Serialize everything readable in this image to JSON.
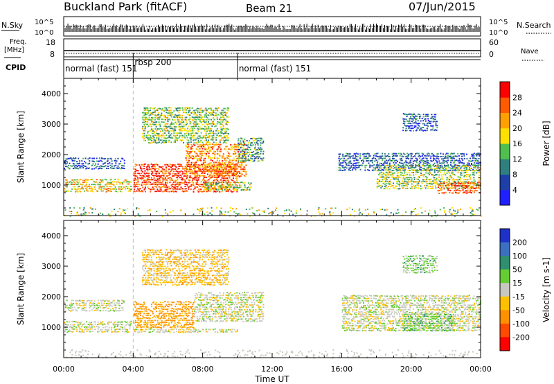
{
  "header": {
    "station": "Buckland Park (fitACF)",
    "beam": "Beam 21",
    "date": "07/Jun/2015"
  },
  "top_panels": {
    "nsky_label": "N.Sky",
    "nsearch_label": "N.Search",
    "noise_ticks": [
      "10^5",
      "10^0"
    ],
    "freq_label": "Freq.",
    "freq_unit": "[MHz]",
    "freq_ticks": [
      "18",
      "8"
    ],
    "nave_label": "Nave",
    "nave_ticks": [
      "60",
      "0"
    ],
    "cpid_label": "CPID",
    "cpid_segments": [
      {
        "label": "normal (fast) 151",
        "start_hour": 0,
        "end_hour": 4
      },
      {
        "label": "rbsp 200",
        "start_hour": 4,
        "end_hour": 10
      },
      {
        "label": "normal (fast) 151",
        "start_hour": 10,
        "end_hour": 24
      }
    ]
  },
  "chart_data": [
    {
      "type": "heatmap",
      "title": "",
      "xlabel": "Time UT",
      "ylabel": "Slant Range [km]",
      "xlim": [
        0,
        24
      ],
      "ylim": [
        0,
        4500
      ],
      "x_tick_labels": [
        "00:00",
        "04:00",
        "08:00",
        "12:00",
        "16:00",
        "20:00",
        "00:00"
      ],
      "y_ticks": [
        1000,
        2000,
        3000,
        4000
      ],
      "colorbar": {
        "label": "Power [dB]",
        "ticks": [
          4,
          8,
          12,
          16,
          20,
          24,
          28
        ],
        "range": [
          0,
          30
        ],
        "colors": [
          "#2020ff",
          "#1e3fa8",
          "#2f7f7f",
          "#4fbf4f",
          "#ffe000",
          "#ffa000",
          "#ff5a00",
          "#ff0000"
        ]
      },
      "bands": [
        {
          "name": "",
          "t0": 0.0,
          "t1": 3.9,
          "r0": 800,
          "r1": 1250,
          "value": 18
        },
        {
          "name": "",
          "t0": 0.0,
          "t1": 3.5,
          "r0": 1550,
          "r1": 1950,
          "value": 6
        },
        {
          "name": "",
          "t0": 4.0,
          "t1": 10.0,
          "r0": 800,
          "r1": 1750,
          "value": 26
        },
        {
          "name": "",
          "t0": 7.0,
          "t1": 10.5,
          "r0": 1300,
          "r1": 2400,
          "value": 22
        },
        {
          "name": "",
          "t0": 8.0,
          "t1": 10.8,
          "r0": 850,
          "r1": 1150,
          "value": 15
        },
        {
          "name": "",
          "t0": 4.5,
          "t1": 9.5,
          "r0": 2400,
          "r1": 3600,
          "value": 14
        },
        {
          "name": "",
          "t0": 10.0,
          "t1": 11.5,
          "r0": 1800,
          "r1": 2600,
          "value": 11
        },
        {
          "name": "",
          "t0": 15.8,
          "t1": 24.0,
          "r0": 1500,
          "r1": 2100,
          "value": 7
        },
        {
          "name": "",
          "t0": 18.0,
          "t1": 24.0,
          "r0": 900,
          "r1": 1700,
          "value": 15
        },
        {
          "name": "",
          "t0": 21.5,
          "t1": 24.0,
          "r0": 750,
          "r1": 1150,
          "value": 25
        },
        {
          "name": "",
          "t0": 19.5,
          "t1": 21.5,
          "r0": 2800,
          "r1": 3400,
          "value": 6
        }
      ]
    },
    {
      "type": "heatmap",
      "title": "",
      "xlabel": "Time UT",
      "ylabel": "Slant Range [km]",
      "xlim": [
        0,
        24
      ],
      "ylim": [
        0,
        4500
      ],
      "x_tick_labels": [
        "00:00",
        "04:00",
        "08:00",
        "12:00",
        "16:00",
        "20:00",
        "00:00"
      ],
      "y_ticks": [
        1000,
        2000,
        3000,
        4000
      ],
      "colorbar": {
        "label": "Velocity [m s-1]",
        "ticks": [
          200,
          100,
          50,
          15,
          -15,
          -50,
          -100,
          -200
        ],
        "colors": [
          "#1e32c8",
          "#3c6fbf",
          "#2f8f6f",
          "#66cc33",
          "#c8c8c0",
          "#ffc000",
          "#ff9000",
          "#ff4a00",
          "#ff0000"
        ]
      },
      "bands": [
        {
          "name": "",
          "t0": 0.0,
          "t1": 3.9,
          "r0": 850,
          "r1": 1250,
          "value": 0
        },
        {
          "name": "",
          "t0": 0.0,
          "t1": 3.5,
          "r0": 1550,
          "r1": 1950,
          "value": 0
        },
        {
          "name": "",
          "t0": 4.0,
          "t1": 7.5,
          "r0": 1000,
          "r1": 1900,
          "value": -60
        },
        {
          "name": "",
          "t0": 4.0,
          "t1": 10.0,
          "r0": 850,
          "r1": 1000,
          "value": 0
        },
        {
          "name": "",
          "t0": 7.5,
          "t1": 11.5,
          "r0": 1200,
          "r1": 2200,
          "value": 0
        },
        {
          "name": "",
          "t0": 4.5,
          "t1": 9.5,
          "r0": 2400,
          "r1": 3600,
          "value": -30
        },
        {
          "name": "",
          "t0": 16.0,
          "t1": 24.0,
          "r0": 900,
          "r1": 2100,
          "value": 0
        },
        {
          "name": "",
          "t0": 19.5,
          "t1": 22.5,
          "r0": 900,
          "r1": 1500,
          "value": 30
        },
        {
          "name": "",
          "t0": 19.5,
          "t1": 21.5,
          "r0": 2800,
          "r1": 3400,
          "value": 30
        }
      ]
    }
  ]
}
